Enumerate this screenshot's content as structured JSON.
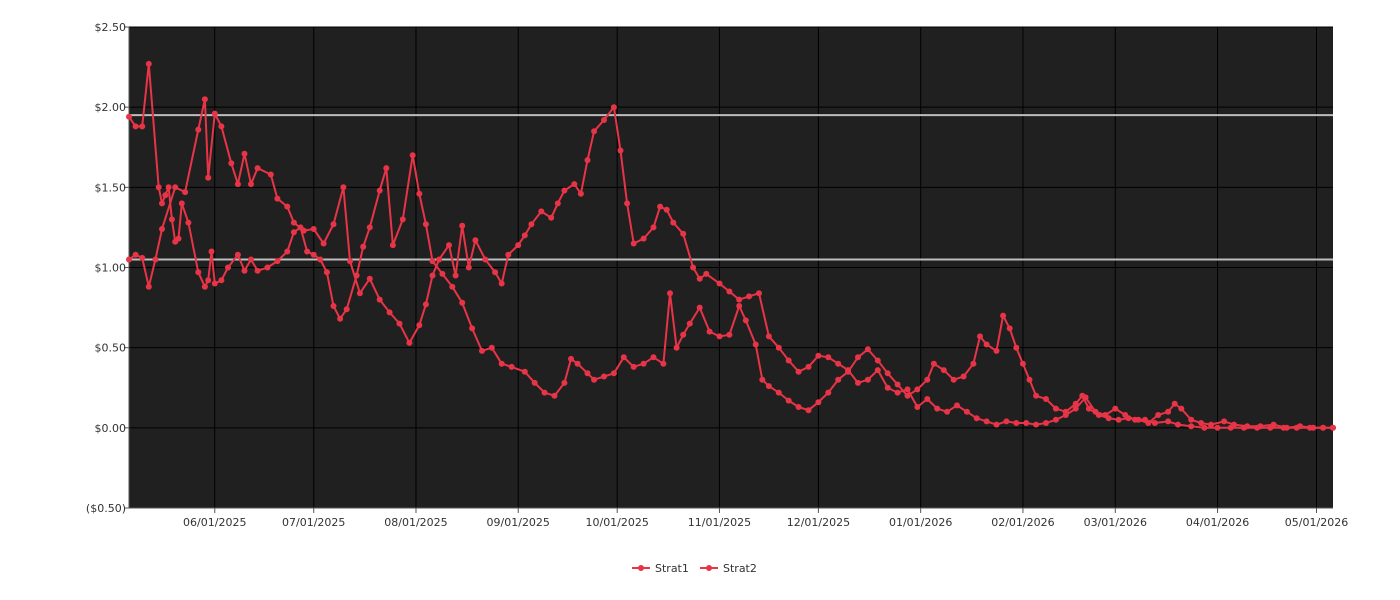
{
  "chart_data": {
    "type": "line",
    "y_ticks": [
      -0.5,
      0,
      0.5,
      1.0,
      1.5,
      2.0,
      2.5
    ],
    "y_tick_labels": [
      "($0.50)",
      "$0.00",
      "$0.50",
      "$1.00",
      "$1.50",
      "$2.00",
      "$2.50"
    ],
    "ylim": [
      -0.5,
      2.5
    ],
    "x_tick_labels": [
      "06/01/2025",
      "07/01/2025",
      "08/01/2025",
      "09/01/2025",
      "10/01/2025",
      "11/01/2025",
      "12/01/2025",
      "01/01/2026",
      "02/01/2026",
      "03/01/2026",
      "04/01/2026",
      "05/01/2026"
    ],
    "x_tick_dates": [
      "2025-06-01",
      "2025-07-01",
      "2025-08-01",
      "2025-09-01",
      "2025-10-01",
      "2025-11-01",
      "2025-12-01",
      "2026-01-01",
      "2026-02-01",
      "2026-03-01",
      "2026-04-01",
      "2026-05-01"
    ],
    "xlim": [
      "2025-05-06",
      "2026-05-06"
    ],
    "reference_lines": [
      1.95,
      1.05
    ],
    "grid": true,
    "legend_position": "bottom-center",
    "colors": {
      "plot_background": "#202020",
      "series": "#e83447",
      "reference_line": "#bdbdbd",
      "gridline": "#000000"
    },
    "series": [
      {
        "name": "Strat1",
        "points": [
          [
            "2025-05-06",
            1.94
          ],
          [
            "2025-05-08",
            1.88
          ],
          [
            "2025-05-10",
            1.88
          ],
          [
            "2025-05-12",
            2.27
          ],
          [
            "2025-05-15",
            1.5
          ],
          [
            "2025-05-16",
            1.4
          ],
          [
            "2025-05-17",
            1.45
          ],
          [
            "2025-05-18",
            1.5
          ],
          [
            "2025-05-19",
            1.3
          ],
          [
            "2025-05-20",
            1.16
          ],
          [
            "2025-05-21",
            1.18
          ],
          [
            "2025-05-22",
            1.4
          ],
          [
            "2025-05-24",
            1.28
          ],
          [
            "2025-05-27",
            0.97
          ],
          [
            "2025-05-29",
            0.88
          ],
          [
            "2025-05-30",
            0.92
          ],
          [
            "2025-05-31",
            1.1
          ],
          [
            "2025-06-01",
            0.9
          ],
          [
            "2025-06-03",
            0.92
          ],
          [
            "2025-06-05",
            1.0
          ],
          [
            "2025-06-08",
            1.08
          ],
          [
            "2025-06-10",
            0.98
          ],
          [
            "2025-06-12",
            1.05
          ],
          [
            "2025-06-14",
            0.98
          ],
          [
            "2025-06-17",
            1.0
          ],
          [
            "2025-06-20",
            1.04
          ],
          [
            "2025-06-23",
            1.1
          ],
          [
            "2025-06-25",
            1.22
          ],
          [
            "2025-06-27",
            1.25
          ],
          [
            "2025-06-29",
            1.1
          ],
          [
            "2025-07-01",
            1.08
          ],
          [
            "2025-07-03",
            1.05
          ],
          [
            "2025-07-05",
            0.97
          ],
          [
            "2025-07-07",
            0.76
          ],
          [
            "2025-07-09",
            0.68
          ],
          [
            "2025-07-11",
            0.74
          ],
          [
            "2025-07-14",
            0.95
          ],
          [
            "2025-07-16",
            1.13
          ],
          [
            "2025-07-18",
            1.25
          ],
          [
            "2025-07-21",
            1.48
          ],
          [
            "2025-07-23",
            1.62
          ],
          [
            "2025-07-25",
            1.14
          ],
          [
            "2025-07-28",
            1.3
          ],
          [
            "2025-07-31",
            1.7
          ],
          [
            "2025-08-02",
            1.46
          ],
          [
            "2025-08-04",
            1.27
          ],
          [
            "2025-08-06",
            1.04
          ],
          [
            "2025-08-09",
            0.96
          ],
          [
            "2025-08-12",
            0.88
          ],
          [
            "2025-08-15",
            0.78
          ],
          [
            "2025-08-18",
            0.62
          ],
          [
            "2025-08-21",
            0.48
          ],
          [
            "2025-08-24",
            0.5
          ],
          [
            "2025-08-27",
            0.4
          ],
          [
            "2025-08-30",
            0.38
          ],
          [
            "2025-09-03",
            0.35
          ],
          [
            "2025-09-06",
            0.28
          ],
          [
            "2025-09-09",
            0.22
          ],
          [
            "2025-09-12",
            0.2
          ],
          [
            "2025-09-15",
            0.28
          ],
          [
            "2025-09-17",
            0.43
          ],
          [
            "2025-09-19",
            0.4
          ],
          [
            "2025-09-22",
            0.34
          ],
          [
            "2025-09-24",
            0.3
          ],
          [
            "2025-09-27",
            0.32
          ],
          [
            "2025-09-30",
            0.34
          ],
          [
            "2025-10-03",
            0.44
          ],
          [
            "2025-10-06",
            0.38
          ],
          [
            "2025-10-09",
            0.4
          ],
          [
            "2025-10-12",
            0.44
          ],
          [
            "2025-10-15",
            0.4
          ],
          [
            "2025-10-17",
            0.84
          ],
          [
            "2025-10-19",
            0.5
          ],
          [
            "2025-10-21",
            0.58
          ],
          [
            "2025-10-23",
            0.65
          ],
          [
            "2025-10-26",
            0.75
          ],
          [
            "2025-10-29",
            0.6
          ],
          [
            "2025-11-01",
            0.57
          ],
          [
            "2025-11-04",
            0.58
          ],
          [
            "2025-11-07",
            0.76
          ],
          [
            "2025-11-09",
            0.67
          ],
          [
            "2025-11-12",
            0.52
          ],
          [
            "2025-11-14",
            0.3
          ],
          [
            "2025-11-16",
            0.26
          ],
          [
            "2025-11-19",
            0.22
          ],
          [
            "2025-11-22",
            0.17
          ],
          [
            "2025-11-25",
            0.13
          ],
          [
            "2025-11-28",
            0.11
          ],
          [
            "2025-12-01",
            0.16
          ],
          [
            "2025-12-04",
            0.22
          ],
          [
            "2025-12-07",
            0.3
          ],
          [
            "2025-12-10",
            0.35
          ],
          [
            "2025-12-13",
            0.44
          ],
          [
            "2025-12-16",
            0.49
          ],
          [
            "2025-12-19",
            0.42
          ],
          [
            "2025-12-22",
            0.34
          ],
          [
            "2025-12-25",
            0.27
          ],
          [
            "2025-12-28",
            0.2
          ],
          [
            "2025-12-31",
            0.24
          ],
          [
            "2026-01-03",
            0.3
          ],
          [
            "2026-01-05",
            0.4
          ],
          [
            "2026-01-08",
            0.36
          ],
          [
            "2026-01-11",
            0.3
          ],
          [
            "2026-01-14",
            0.32
          ],
          [
            "2026-01-17",
            0.4
          ],
          [
            "2026-01-19",
            0.57
          ],
          [
            "2026-01-21",
            0.52
          ],
          [
            "2026-01-24",
            0.48
          ],
          [
            "2026-01-26",
            0.7
          ],
          [
            "2026-01-28",
            0.62
          ],
          [
            "2026-01-30",
            0.5
          ],
          [
            "2026-02-01",
            0.4
          ],
          [
            "2026-02-03",
            0.3
          ],
          [
            "2026-02-05",
            0.2
          ],
          [
            "2026-02-08",
            0.18
          ],
          [
            "2026-02-11",
            0.12
          ],
          [
            "2026-02-14",
            0.1
          ],
          [
            "2026-02-17",
            0.15
          ],
          [
            "2026-02-19",
            0.2
          ],
          [
            "2026-02-21",
            0.12
          ],
          [
            "2026-02-24",
            0.08
          ],
          [
            "2026-02-27",
            0.06
          ],
          [
            "2026-03-02",
            0.05
          ],
          [
            "2026-03-05",
            0.06
          ],
          [
            "2026-03-08",
            0.05
          ],
          [
            "2026-03-11",
            0.03
          ],
          [
            "2026-03-14",
            0.08
          ],
          [
            "2026-03-17",
            0.1
          ],
          [
            "2026-03-19",
            0.15
          ],
          [
            "2026-03-21",
            0.12
          ],
          [
            "2026-03-24",
            0.05
          ],
          [
            "2026-03-27",
            0.03
          ],
          [
            "2026-03-30",
            0.02
          ],
          [
            "2026-04-03",
            0.04
          ],
          [
            "2026-04-06",
            0.02
          ],
          [
            "2026-04-10",
            0.01
          ],
          [
            "2026-04-14",
            0.01
          ],
          [
            "2026-04-18",
            0.02
          ],
          [
            "2026-04-22",
            0.0
          ],
          [
            "2026-04-26",
            0.01
          ],
          [
            "2026-04-30",
            0.0
          ],
          [
            "2026-05-03",
            0.0
          ],
          [
            "2026-05-06",
            0.0
          ]
        ]
      },
      {
        "name": "Strat2",
        "points": [
          [
            "2025-05-06",
            1.05
          ],
          [
            "2025-05-08",
            1.08
          ],
          [
            "2025-05-10",
            1.06
          ],
          [
            "2025-05-12",
            0.88
          ],
          [
            "2025-05-14",
            1.05
          ],
          [
            "2025-05-16",
            1.24
          ],
          [
            "2025-05-20",
            1.5
          ],
          [
            "2025-05-23",
            1.47
          ],
          [
            "2025-05-27",
            1.86
          ],
          [
            "2025-05-29",
            2.05
          ],
          [
            "2025-05-30",
            1.56
          ],
          [
            "2025-06-01",
            1.96
          ],
          [
            "2025-06-03",
            1.88
          ],
          [
            "2025-06-06",
            1.65
          ],
          [
            "2025-06-08",
            1.52
          ],
          [
            "2025-06-10",
            1.71
          ],
          [
            "2025-06-12",
            1.52
          ],
          [
            "2025-06-14",
            1.62
          ],
          [
            "2025-06-18",
            1.58
          ],
          [
            "2025-06-20",
            1.43
          ],
          [
            "2025-06-23",
            1.38
          ],
          [
            "2025-06-25",
            1.28
          ],
          [
            "2025-06-28",
            1.23
          ],
          [
            "2025-07-01",
            1.24
          ],
          [
            "2025-07-04",
            1.15
          ],
          [
            "2025-07-07",
            1.27
          ],
          [
            "2025-07-10",
            1.5
          ],
          [
            "2025-07-12",
            1.04
          ],
          [
            "2025-07-15",
            0.84
          ],
          [
            "2025-07-18",
            0.93
          ],
          [
            "2025-07-21",
            0.8
          ],
          [
            "2025-07-24",
            0.72
          ],
          [
            "2025-07-27",
            0.65
          ],
          [
            "2025-07-30",
            0.53
          ],
          [
            "2025-08-02",
            0.64
          ],
          [
            "2025-08-04",
            0.77
          ],
          [
            "2025-08-06",
            0.95
          ],
          [
            "2025-08-08",
            1.05
          ],
          [
            "2025-08-11",
            1.14
          ],
          [
            "2025-08-13",
            0.95
          ],
          [
            "2025-08-15",
            1.26
          ],
          [
            "2025-08-17",
            1.0
          ],
          [
            "2025-08-19",
            1.17
          ],
          [
            "2025-08-22",
            1.05
          ],
          [
            "2025-08-25",
            0.97
          ],
          [
            "2025-08-27",
            0.9
          ],
          [
            "2025-08-29",
            1.08
          ],
          [
            "2025-09-01",
            1.14
          ],
          [
            "2025-09-03",
            1.2
          ],
          [
            "2025-09-05",
            1.27
          ],
          [
            "2025-09-08",
            1.35
          ],
          [
            "2025-09-11",
            1.31
          ],
          [
            "2025-09-13",
            1.4
          ],
          [
            "2025-09-15",
            1.48
          ],
          [
            "2025-09-18",
            1.52
          ],
          [
            "2025-09-20",
            1.46
          ],
          [
            "2025-09-22",
            1.67
          ],
          [
            "2025-09-24",
            1.85
          ],
          [
            "2025-09-27",
            1.92
          ],
          [
            "2025-09-30",
            2.0
          ],
          [
            "2025-10-02",
            1.73
          ],
          [
            "2025-10-04",
            1.4
          ],
          [
            "2025-10-06",
            1.15
          ],
          [
            "2025-10-09",
            1.18
          ],
          [
            "2025-10-12",
            1.25
          ],
          [
            "2025-10-14",
            1.38
          ],
          [
            "2025-10-16",
            1.36
          ],
          [
            "2025-10-18",
            1.28
          ],
          [
            "2025-10-21",
            1.21
          ],
          [
            "2025-10-24",
            1.0
          ],
          [
            "2025-10-26",
            0.93
          ],
          [
            "2025-10-28",
            0.96
          ],
          [
            "2025-11-01",
            0.9
          ],
          [
            "2025-11-04",
            0.85
          ],
          [
            "2025-11-07",
            0.8
          ],
          [
            "2025-11-10",
            0.82
          ],
          [
            "2025-11-13",
            0.84
          ],
          [
            "2025-11-16",
            0.57
          ],
          [
            "2025-11-19",
            0.5
          ],
          [
            "2025-11-22",
            0.42
          ],
          [
            "2025-11-25",
            0.35
          ],
          [
            "2025-11-28",
            0.38
          ],
          [
            "2025-12-01",
            0.45
          ],
          [
            "2025-12-04",
            0.44
          ],
          [
            "2025-12-07",
            0.4
          ],
          [
            "2025-12-10",
            0.36
          ],
          [
            "2025-12-13",
            0.28
          ],
          [
            "2025-12-16",
            0.3
          ],
          [
            "2025-12-19",
            0.36
          ],
          [
            "2025-12-22",
            0.25
          ],
          [
            "2025-12-25",
            0.22
          ],
          [
            "2025-12-28",
            0.24
          ],
          [
            "2025-12-31",
            0.13
          ],
          [
            "2026-01-03",
            0.18
          ],
          [
            "2026-01-06",
            0.12
          ],
          [
            "2026-01-09",
            0.1
          ],
          [
            "2026-01-12",
            0.14
          ],
          [
            "2026-01-15",
            0.1
          ],
          [
            "2026-01-18",
            0.06
          ],
          [
            "2026-01-21",
            0.04
          ],
          [
            "2026-01-24",
            0.02
          ],
          [
            "2026-01-27",
            0.04
          ],
          [
            "2026-01-30",
            0.03
          ],
          [
            "2026-02-02",
            0.03
          ],
          [
            "2026-02-05",
            0.02
          ],
          [
            "2026-02-08",
            0.03
          ],
          [
            "2026-02-11",
            0.05
          ],
          [
            "2026-02-14",
            0.08
          ],
          [
            "2026-02-17",
            0.12
          ],
          [
            "2026-02-20",
            0.19
          ],
          [
            "2026-02-23",
            0.1
          ],
          [
            "2026-02-26",
            0.08
          ],
          [
            "2026-03-01",
            0.12
          ],
          [
            "2026-03-04",
            0.08
          ],
          [
            "2026-03-07",
            0.05
          ],
          [
            "2026-03-10",
            0.05
          ],
          [
            "2026-03-13",
            0.03
          ],
          [
            "2026-03-17",
            0.04
          ],
          [
            "2026-03-20",
            0.02
          ],
          [
            "2026-03-24",
            0.01
          ],
          [
            "2026-03-28",
            0.0
          ],
          [
            "2026-04-01",
            0.0
          ],
          [
            "2026-04-05",
            0.0
          ],
          [
            "2026-04-09",
            0.0
          ],
          [
            "2026-04-13",
            0.0
          ],
          [
            "2026-04-17",
            0.0
          ],
          [
            "2026-04-21",
            0.0
          ],
          [
            "2026-04-25",
            0.0
          ],
          [
            "2026-04-29",
            0.0
          ],
          [
            "2026-05-03",
            0.0
          ],
          [
            "2026-05-06",
            0.0
          ]
        ]
      }
    ]
  }
}
